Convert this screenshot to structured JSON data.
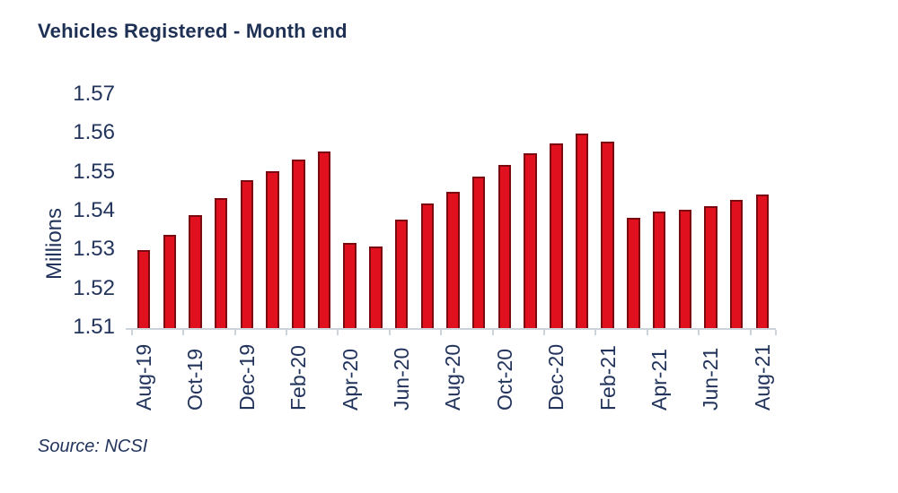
{
  "title": "Vehicles Registered - Month end",
  "source": "Source: NCSI",
  "colors": {
    "title_text": "#1E3054",
    "axis_text": "#22345C",
    "source_text": "#22345C",
    "axis_line": "#CDD3DA",
    "bar_fill": "#E0101E",
    "bar_border": "#7A0A10"
  },
  "chart_data": {
    "type": "bar",
    "title": "Vehicles Registered - Month end",
    "xlabel": "",
    "ylabel": "Millions",
    "ylim": [
      1.51,
      1.57
    ],
    "yticks": [
      1.51,
      1.52,
      1.53,
      1.54,
      1.55,
      1.56,
      1.57
    ],
    "grid": false,
    "legend": "none",
    "categories": [
      "Aug-19",
      "Sep-19",
      "Oct-19",
      "Nov-19",
      "Dec-19",
      "Jan-20",
      "Feb-20",
      "Mar-20",
      "Apr-20",
      "May-20",
      "Jun-20",
      "Jul-20",
      "Aug-20",
      "Sep-20",
      "Oct-20",
      "Nov-20",
      "Dec-20",
      "Jan-21",
      "Feb-21",
      "Mar-21",
      "Apr-21",
      "May-21",
      "Jun-21",
      "Jul-21",
      "Aug-21"
    ],
    "values": [
      1.53,
      1.534,
      1.539,
      1.5435,
      1.548,
      1.5505,
      1.5535,
      1.5555,
      1.532,
      1.531,
      1.538,
      1.542,
      1.545,
      1.549,
      1.552,
      1.555,
      1.5575,
      1.56,
      1.558,
      1.5385,
      1.54,
      1.5405,
      1.5415,
      1.543,
      1.5445
    ],
    "xticks_shown": [
      "Aug-19",
      "Oct-19",
      "Dec-19",
      "Feb-20",
      "Apr-20",
      "Jun-20",
      "Aug-20",
      "Oct-20",
      "Dec-20",
      "Feb-21",
      "Apr-21",
      "Jun-21",
      "Aug-21"
    ],
    "bar_color": "#E0101E",
    "bar_border_color": "#7A0A10"
  }
}
